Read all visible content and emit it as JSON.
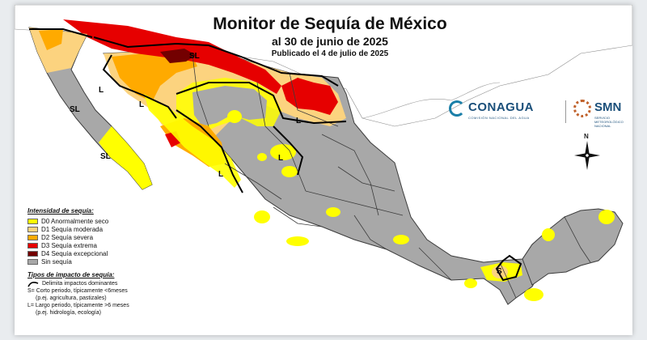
{
  "header": {
    "title": "Monitor de Sequía de México",
    "subtitle": "al 30 de junio de 2025",
    "published": "Publicado el 4 de julio de 2025"
  },
  "logos": {
    "conagua_name": "CONAGUA",
    "conagua_sub": "COMISIÓN NACIONAL DEL AGUA",
    "smn_name": "SMN",
    "smn_sub": "SERVICIO METEOROLÓGICO NACIONAL"
  },
  "compass": {
    "north_label": "N"
  },
  "map_labels": {
    "sl_north": "SL",
    "l_northwest": "L",
    "l_sonora": "L",
    "l_chihuahua": "L",
    "l_coahuila": "L",
    "l_durango": "L",
    "sl_baja_north": "SL",
    "sl_baja_south": "SL",
    "s_yucatan": "S"
  },
  "legend": {
    "title": "Intensidad de sequía:",
    "items": [
      {
        "code": "D0",
        "label": "D0 Anormalmente seco",
        "color": "#ffff00"
      },
      {
        "code": "D1",
        "label": "D1 Sequía moderada",
        "color": "#fcd37f"
      },
      {
        "code": "D2",
        "label": "D2 Sequía severa",
        "color": "#ffaa00"
      },
      {
        "code": "D3",
        "label": "D3 Sequía extrema",
        "color": "#e60000"
      },
      {
        "code": "D4",
        "label": "D4 Sequía excepcional",
        "color": "#730000"
      },
      {
        "code": "none",
        "label": "Sin sequía",
        "color": "#a8a8a8"
      }
    ]
  },
  "impacts": {
    "title": "Tipos de impacto de sequía:",
    "boundary_label": "Delimita impactos dominantes",
    "short_label": "S= Corto periodo, típicamente <6meses",
    "short_example": "(p.ej. agricultura, pastizales)",
    "long_label": "L= Largo periodo, típicamente >6 meses",
    "long_example": "(p.ej. hidrología, ecología)"
  },
  "colors": {
    "no_drought": "#a8a8a8",
    "ocean": "#ffffff",
    "neighbor_land": "#ffffff",
    "state_border": "#3c3c3c",
    "impact_line": "#000000"
  }
}
